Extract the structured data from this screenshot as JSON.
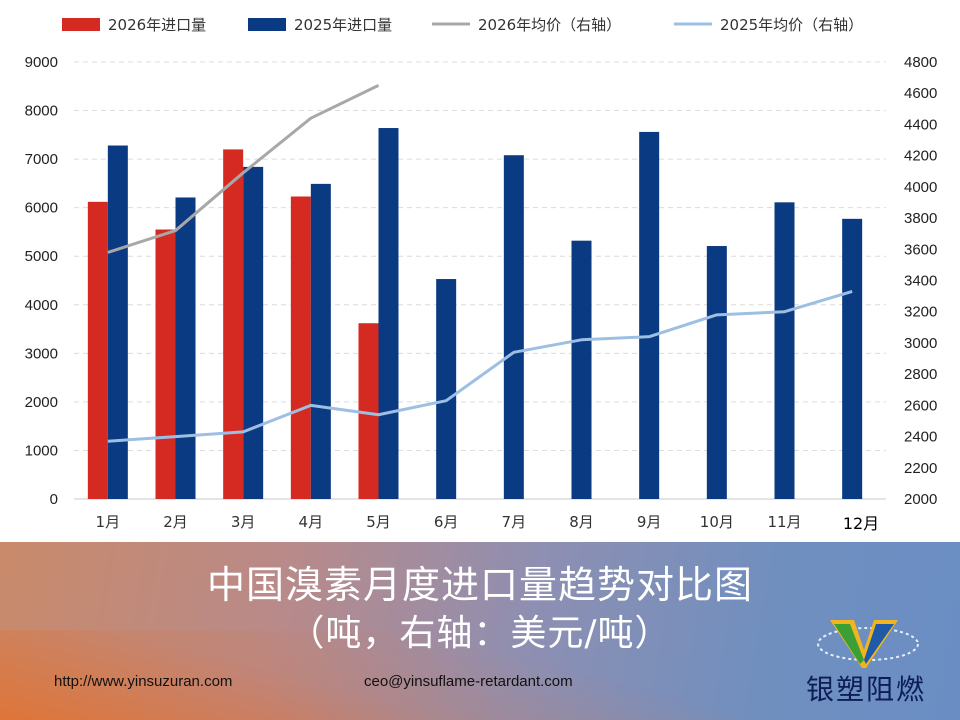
{
  "chart_data": {
    "type": "bar+line",
    "title": "中国溴素月度进口量趋势对比图",
    "subtitle": "（吨，右轴：美元/吨）",
    "categories": [
      "1月",
      "2月",
      "3月",
      "4月",
      "5月",
      "6月",
      "7月",
      "8月",
      "9月",
      "10月",
      "11月",
      "12月"
    ],
    "left_axis": {
      "min": 0,
      "max": 9000,
      "step": 1000
    },
    "right_axis": {
      "min": 2000,
      "max": 4800,
      "step": 200
    },
    "grid": true,
    "legend_position": "top",
    "series": [
      {
        "name": "2026年进口量",
        "type": "bar",
        "axis": "left",
        "color": "#d42a22",
        "values": [
          6120,
          5550,
          7200,
          6230,
          3620,
          null,
          null,
          null,
          null,
          null,
          null,
          null
        ]
      },
      {
        "name": "2025年进口量",
        "type": "bar",
        "axis": "left",
        "color": "#0a3a82",
        "values": [
          7280,
          6210,
          6840,
          6490,
          7640,
          4530,
          7080,
          5320,
          7560,
          5210,
          6110,
          5770
        ]
      },
      {
        "name": "2026年均价（右轴）",
        "type": "line",
        "axis": "right",
        "color": "#a8a8a8",
        "values": [
          3580,
          3720,
          4090,
          4440,
          4650,
          null,
          null,
          null,
          null,
          null,
          null,
          null
        ]
      },
      {
        "name": "2025年均价（右轴）",
        "type": "line",
        "axis": "right",
        "color": "#9dbfe3",
        "values": [
          2370,
          2400,
          2430,
          2600,
          2540,
          2630,
          2940,
          3020,
          3040,
          3180,
          3200,
          3330
        ]
      }
    ]
  },
  "banner": {
    "title": "中国溴素月度进口量趋势对比图",
    "subtitle": "（吨，右轴：美元/吨）",
    "website": "http://www.yinsuzuran.com",
    "email": "ceo@yinsuflame-retardant.com",
    "brand": "银塑阻燃"
  }
}
